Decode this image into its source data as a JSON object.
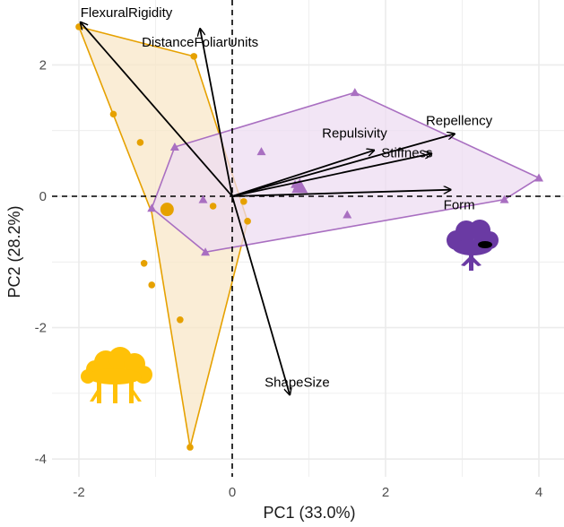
{
  "chart_data": {
    "type": "scatter",
    "subtype": "pca-biplot",
    "title": "",
    "xlabel": "PC1 (33.0%)",
    "ylabel": "PC2 (28.2%)",
    "xlim": [
      -2.3,
      4.3
    ],
    "ylim": [
      -4.15,
      2.9
    ],
    "x_ticks": [
      -2,
      0,
      2,
      4
    ],
    "y_ticks": [
      -4,
      -2,
      0,
      2
    ],
    "grid": true,
    "colors": {
      "group_a": "#e6a100",
      "group_a_fill": "#f8e7c8",
      "group_a_icon": "#ffc107",
      "group_b": "#a96fc1",
      "group_b_fill": "#eddcf2",
      "group_b_icon": "#6a3aa3",
      "arrow": "#000000",
      "grid": "#ebebeb"
    },
    "groups": [
      {
        "name": "group-a",
        "marker": "circle",
        "icon": "tree-cluster-icon",
        "hull": [
          [
            -2.0,
            2.58
          ],
          [
            -0.5,
            2.13
          ],
          [
            0.2,
            -0.38
          ],
          [
            -0.55,
            -3.82
          ],
          [
            -1.05,
            -0.25
          ]
        ],
        "points": [
          [
            -2.0,
            2.58
          ],
          [
            -0.5,
            2.13
          ],
          [
            -1.55,
            1.25
          ],
          [
            -1.2,
            0.82
          ],
          [
            -0.88,
            -0.18
          ],
          [
            -0.25,
            -0.15
          ],
          [
            0.15,
            -0.08
          ],
          [
            0.2,
            -0.38
          ],
          [
            -1.15,
            -1.02
          ],
          [
            -1.05,
            -1.35
          ],
          [
            -0.68,
            -1.88
          ],
          [
            -0.55,
            -3.82
          ]
        ],
        "centroid": [
          -0.85,
          -0.2
        ]
      },
      {
        "name": "group-b",
        "marker": "triangle",
        "icon": "tree-icon",
        "hull": [
          [
            1.6,
            1.58
          ],
          [
            4.0,
            0.28
          ],
          [
            3.55,
            -0.05
          ],
          [
            -0.35,
            -0.85
          ],
          [
            -1.05,
            -0.18
          ],
          [
            -0.75,
            0.75
          ]
        ],
        "points": [
          [
            1.6,
            1.58
          ],
          [
            4.0,
            0.28
          ],
          [
            3.55,
            -0.05
          ],
          [
            0.38,
            0.68
          ],
          [
            0.82,
            0.18
          ],
          [
            0.85,
            0.15
          ],
          [
            1.5,
            -0.28
          ],
          [
            -0.38,
            -0.05
          ],
          [
            -0.35,
            -0.85
          ],
          [
            -1.05,
            -0.18
          ],
          [
            -0.75,
            0.75
          ]
        ],
        "centroid": [
          0.88,
          0.15
        ]
      }
    ],
    "loadings": [
      {
        "label": "FlexuralRigidity",
        "x": -1.98,
        "y": 2.65
      },
      {
        "label": "DistanceFoliarUnits",
        "x": -0.42,
        "y": 2.55
      },
      {
        "label": "Repulsivity",
        "x": 1.85,
        "y": 0.7
      },
      {
        "label": "Repellency",
        "x": 2.9,
        "y": 0.95
      },
      {
        "label": "Stiffness",
        "x": 2.6,
        "y": 0.65
      },
      {
        "label": "Form",
        "x": 2.85,
        "y": 0.1
      },
      {
        "label": "ShapeSize",
        "x": 0.75,
        "y": -3.02
      }
    ]
  }
}
